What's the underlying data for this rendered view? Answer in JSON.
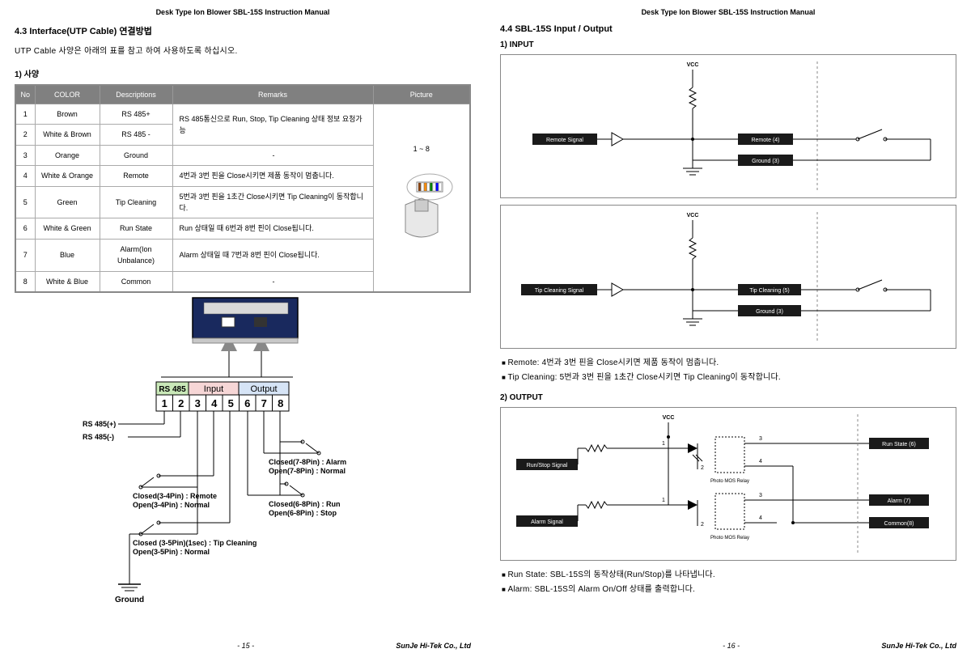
{
  "doc_header": "Desk Type Ion Blower SBL-15S Instruction Manual",
  "company": "SunJe Hi-Tek Co., Ltd",
  "left": {
    "section_num_title": "4.3 Interface(UTP Cable) 연결방법",
    "intro": "UTP Cable 사양은 아래의 표를 참고 하여 사용하도록 하십시오.",
    "spec_heading": "1) 사양",
    "table": {
      "headers": [
        "No",
        "COLOR",
        "Descriptions",
        "Remarks",
        "Picture"
      ],
      "rows": [
        {
          "no": "1",
          "color": "Brown",
          "desc": "RS 485+",
          "remarks": ""
        },
        {
          "no": "2",
          "color": "White & Brown",
          "desc": "RS 485 -",
          "remarks": "RS 485통신으로 Run, Stop, Tip Cleaning 상태 정보 요청가능"
        },
        {
          "no": "3",
          "color": "Orange",
          "desc": "Ground",
          "remarks": "-"
        },
        {
          "no": "4",
          "color": "White & Orange",
          "desc": "Remote",
          "remarks": "4번과 3번 핀을 Close시키면 제품 동작이 멈춥니다."
        },
        {
          "no": "5",
          "color": "Green",
          "desc": "Tip Cleaning",
          "remarks": "5번과 3번 핀을 1초간 Close시키면 Tip Cleaning이 동작합니다."
        },
        {
          "no": "6",
          "color": "White & Green",
          "desc": "Run State",
          "remarks": "Run 상태일 때 6번과 8번 핀이 Close됩니다."
        },
        {
          "no": "7",
          "color": "Blue",
          "desc": "Alarm(Ion Unbalance)",
          "remarks": "Alarm 상태일 때 7번과 8번 핀이 Close됩니다."
        },
        {
          "no": "8",
          "color": "White & Blue",
          "desc": "Common",
          "remarks": "-"
        }
      ],
      "picture_label": "1 ~ 8"
    },
    "pin_diagram": {
      "group_rs485": "RS 485",
      "group_input": "Input",
      "group_output": "Output",
      "pins": [
        "1",
        "2",
        "3",
        "4",
        "5",
        "6",
        "7",
        "8"
      ],
      "rs485_plus": "RS 485(+)",
      "rs485_minus": "RS 485(-)",
      "note34": "Closed(3-4Pin) : Remote\nOpen(3-4Pin) : Normal",
      "note35": "Closed (3-5Pin)(1sec) : Tip Cleaning\nOpen(3-5Pin) : Normal",
      "note78": "Closed(7-8Pin) : Alarm\nOpen(7-8Pin) : Normal",
      "note68": "Closed(6-8Pin) : Run\nOpen(6-8Pin) : Stop",
      "ground": "Ground"
    },
    "page_num": "- 15 -"
  },
  "right": {
    "section_title": "4.4 SBL-15S Input / Output",
    "input_heading": "1) INPUT",
    "input1": {
      "vcc": "VCC",
      "signal": "Remote Signal",
      "pin_a": "Remote  (4)",
      "pin_b": "Ground (3)"
    },
    "input2": {
      "vcc": "VCC",
      "signal": "Tip Cleaning Signal",
      "pin_a": "Tip Cleaning (5)",
      "pin_b": "Ground (3)"
    },
    "input_notes": [
      "Remote: 4번과 3번 핀을 Close시키면 제품 동작이 멈춥니다.",
      "Tip Cleaning: 5번과 3번 핀을 1초간 Close시키면 Tip Cleaning이 동작합니다."
    ],
    "output_heading": "2) OUTPUT",
    "output": {
      "vcc": "VCC",
      "sig1": "Run/Stop Signal",
      "sig2": "Alarm Signal",
      "relay": "Photo MOS Relay",
      "p1": "1",
      "p2": "2",
      "p3": "3",
      "p4": "4",
      "out1": "Run State (6)",
      "out2": "Alarm (7)",
      "out3": "Common(8)"
    },
    "output_notes": [
      "Run State: SBL-15S의 동작상태(Run/Stop)를 나타냅니다.",
      "Alarm: SBL-15S의 Alarm On/Off 상태를 출력합니다."
    ],
    "page_num": "- 16 -"
  }
}
